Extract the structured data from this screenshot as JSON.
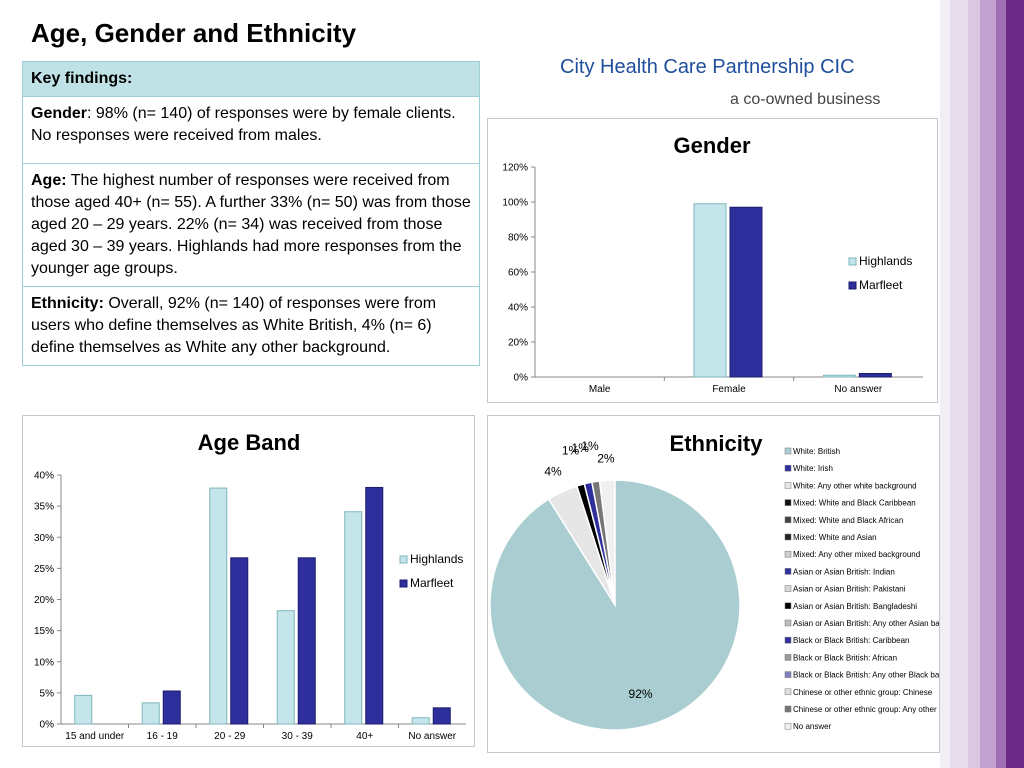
{
  "page_title": "Age, Gender and Ethnicity",
  "logo": {
    "line1": "City Health Care Partnership CIC",
    "line2": "a co-owned business"
  },
  "key_findings": {
    "header": "Key findings:",
    "gender_label": "Gender",
    "gender_text": ":  98% (n= 140) of responses were by female clients.  No responses were received from males.",
    "age_label": "Age:",
    "age_text": "  The highest number of responses were received from those aged 40+ (n= 55).  A further 33% (n= 50) was from those aged 20 – 29 years.  22% (n= 34) was received from those aged 30 – 39 years.  Highlands had more responses from the younger age groups.",
    "ethnicity_label": "Ethnicity:",
    "ethnicity_text": " Overall, 92% (n= 140) of responses were from users who define themselves as White British, 4% (n= 6) define themselves as White any other background."
  },
  "colors": {
    "highlands": "#c4e6ea",
    "marfleet": "#2e2e9c",
    "pie_main": "#a9cdd0"
  },
  "chart_data": [
    {
      "type": "bar",
      "title": "Gender",
      "categories": [
        "Male",
        "Female",
        "No answer"
      ],
      "series": [
        {
          "name": "Highlands",
          "values": [
            0,
            99,
            1
          ]
        },
        {
          "name": "Marfleet",
          "values": [
            0,
            97,
            2
          ]
        }
      ],
      "ylim": [
        0,
        120
      ],
      "yticks": [
        "0%",
        "20%",
        "40%",
        "60%",
        "80%",
        "100%",
        "120%"
      ],
      "legend": "right",
      "grid": false
    },
    {
      "type": "bar",
      "title": "Age Band",
      "categories": [
        "15 and under",
        "16 - 19",
        "20 - 29",
        "30 - 39",
        "40+",
        "No answer"
      ],
      "series": [
        {
          "name": "Highlands",
          "values": [
            4.6,
            3.4,
            37.9,
            18.2,
            34.1,
            1
          ]
        },
        {
          "name": "Marfleet",
          "values": [
            0,
            5.3,
            26.7,
            26.7,
            38,
            2.6
          ]
        }
      ],
      "ylim": [
        0,
        40
      ],
      "yticks": [
        "0%",
        "5%",
        "10%",
        "15%",
        "20%",
        "25%",
        "30%",
        "35%",
        "40%"
      ],
      "legend": "right",
      "grid": false
    },
    {
      "type": "pie",
      "title": "Ethnicity",
      "labels": [
        "White: British",
        "White: Irish",
        "White: Any other white background",
        "Mixed: White and Black Caribbean",
        "Mixed: White and Black African",
        "Mixed: White and Asian",
        "Mixed: Any other mixed background",
        "Asian or Asian British: Indian",
        "Asian or Asian British: Pakistani",
        "Asian or Asian British: Bangladeshi",
        "Asian or Asian British: Any other Asian background",
        "Black or Black British: Caribbean",
        "Black or Black British: African",
        "Black or Black British: Any other Black background",
        "Chinese or other ethnic group: Chinese",
        "Chinese or other ethnic group: Any other ethnic group",
        "No answer"
      ],
      "values": [
        92,
        0,
        4,
        0,
        0,
        0,
        0,
        0,
        0,
        1,
        0,
        1,
        0,
        0,
        0,
        1,
        2
      ],
      "slice_labels": [
        "92%",
        "",
        "4%",
        "",
        "",
        "",
        "",
        "",
        "",
        "1%",
        "",
        "1%",
        "",
        "",
        "",
        "1%",
        "2%"
      ],
      "slice_colors": [
        "#a9cdd0",
        "#2e2e9c",
        "#e6e6e6",
        "#111111",
        "#444444",
        "#222222",
        "#cfcfcf",
        "#2e2e9c",
        "#d8d8d8",
        "#000000",
        "#bdbdbd",
        "#2e2e9c",
        "#9a9a9a",
        "#7f7fbf",
        "#e0e0e0",
        "#777777",
        "#f0f0f0"
      ],
      "legend": "right"
    }
  ]
}
